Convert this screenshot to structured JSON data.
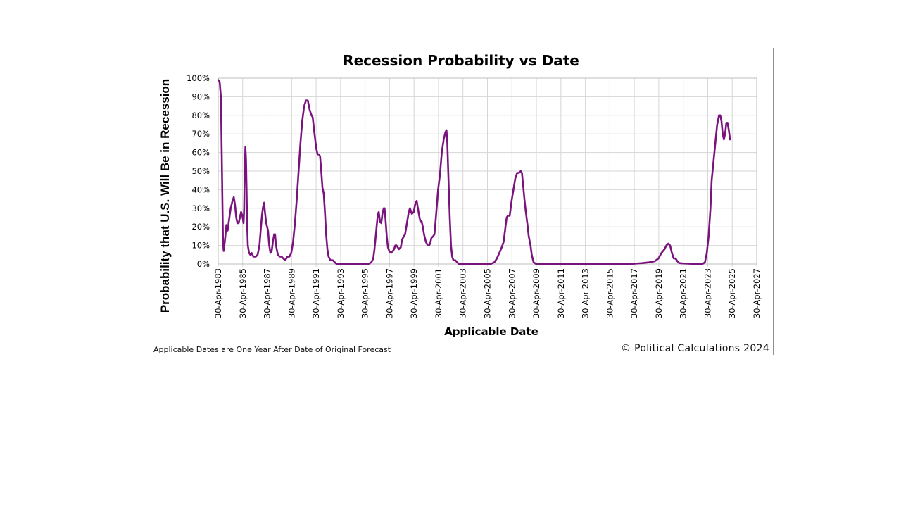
{
  "chart_data": {
    "type": "line",
    "title": "Recession Probability vs Date",
    "ylabel": "Probability that U.S. Will Be in Recession",
    "xlabel": "Applicable Date",
    "footnote": "Applicable Dates are One Year After Date of Original Forecast",
    "copyright": "© Political Calculations 2024",
    "ylim": [
      0,
      100
    ],
    "xlim": [
      1983.33,
      2027.33
    ],
    "yticks": [
      "0%",
      "10%",
      "20%",
      "30%",
      "40%",
      "50%",
      "60%",
      "70%",
      "80%",
      "90%",
      "100%"
    ],
    "xticks": [
      "30-Apr-1983",
      "30-Apr-1985",
      "30-Apr-1987",
      "30-Apr-1989",
      "30-Apr-1991",
      "30-Apr-1993",
      "30-Apr-1995",
      "30-Apr-1997",
      "30-Apr-1999",
      "30-Apr-2001",
      "30-Apr-2003",
      "30-Apr-2005",
      "30-Apr-2007",
      "30-Apr-2009",
      "30-Apr-2011",
      "30-Apr-2013",
      "30-Apr-2015",
      "30-Apr-2017",
      "30-Apr-2019",
      "30-Apr-2021",
      "30-Apr-2023",
      "30-Apr-2025",
      "30-Apr-2027"
    ],
    "grid": true,
    "series_color": "#7a137e",
    "series": [
      {
        "values": [
          [
            1983.33,
            99
          ],
          [
            1983.45,
            98
          ],
          [
            1983.55,
            90
          ],
          [
            1983.62,
            60
          ],
          [
            1983.68,
            30
          ],
          [
            1983.72,
            12
          ],
          [
            1983.78,
            7
          ],
          [
            1983.9,
            14
          ],
          [
            1984.0,
            21
          ],
          [
            1984.1,
            18
          ],
          [
            1984.2,
            23
          ],
          [
            1984.35,
            30
          ],
          [
            1984.5,
            34
          ],
          [
            1984.6,
            36
          ],
          [
            1984.7,
            32
          ],
          [
            1984.8,
            25
          ],
          [
            1984.9,
            22
          ],
          [
            1985.0,
            22
          ],
          [
            1985.1,
            25
          ],
          [
            1985.2,
            28
          ],
          [
            1985.3,
            26
          ],
          [
            1985.4,
            22
          ],
          [
            1985.45,
            30
          ],
          [
            1985.5,
            50
          ],
          [
            1985.55,
            63
          ],
          [
            1985.6,
            56
          ],
          [
            1985.65,
            40
          ],
          [
            1985.7,
            20
          ],
          [
            1985.75,
            10
          ],
          [
            1985.85,
            6
          ],
          [
            1985.95,
            5
          ],
          [
            1986.05,
            6
          ],
          [
            1986.2,
            4
          ],
          [
            1986.4,
            4
          ],
          [
            1986.55,
            5
          ],
          [
            1986.7,
            10
          ],
          [
            1986.8,
            18
          ],
          [
            1986.9,
            26
          ],
          [
            1987.0,
            31
          ],
          [
            1987.08,
            33
          ],
          [
            1987.15,
            28
          ],
          [
            1987.25,
            22
          ],
          [
            1987.4,
            18
          ],
          [
            1987.5,
            10
          ],
          [
            1987.6,
            6
          ],
          [
            1987.7,
            7
          ],
          [
            1987.8,
            12
          ],
          [
            1987.9,
            16
          ],
          [
            1987.98,
            16
          ],
          [
            1988.05,
            10
          ],
          [
            1988.2,
            5
          ],
          [
            1988.35,
            4
          ],
          [
            1988.5,
            4
          ],
          [
            1988.65,
            3
          ],
          [
            1988.8,
            2
          ],
          [
            1988.9,
            3
          ],
          [
            1989.0,
            4
          ],
          [
            1989.15,
            4
          ],
          [
            1989.3,
            6
          ],
          [
            1989.45,
            12
          ],
          [
            1989.6,
            22
          ],
          [
            1989.75,
            35
          ],
          [
            1989.9,
            50
          ],
          [
            1990.05,
            65
          ],
          [
            1990.2,
            77
          ],
          [
            1990.35,
            85
          ],
          [
            1990.5,
            88
          ],
          [
            1990.65,
            88
          ],
          [
            1990.8,
            83
          ],
          [
            1990.95,
            80
          ],
          [
            1991.05,
            79
          ],
          [
            1991.2,
            70
          ],
          [
            1991.35,
            62
          ],
          [
            1991.45,
            59
          ],
          [
            1991.55,
            59
          ],
          [
            1991.65,
            58
          ],
          [
            1991.75,
            50
          ],
          [
            1991.85,
            41
          ],
          [
            1991.95,
            38
          ],
          [
            1992.05,
            28
          ],
          [
            1992.15,
            16
          ],
          [
            1992.25,
            8
          ],
          [
            1992.35,
            4
          ],
          [
            1992.5,
            2
          ],
          [
            1992.7,
            2
          ],
          [
            1992.85,
            1
          ],
          [
            1993.0,
            0
          ],
          [
            1993.5,
            0
          ],
          [
            1994.0,
            0
          ],
          [
            1995.0,
            0
          ],
          [
            1995.6,
            0
          ],
          [
            1995.85,
            1
          ],
          [
            1996.0,
            3
          ],
          [
            1996.1,
            8
          ],
          [
            1996.2,
            15
          ],
          [
            1996.3,
            22
          ],
          [
            1996.38,
            27
          ],
          [
            1996.45,
            28
          ],
          [
            1996.55,
            23
          ],
          [
            1996.65,
            22
          ],
          [
            1996.75,
            27
          ],
          [
            1996.85,
            30
          ],
          [
            1996.92,
            30
          ],
          [
            1997.0,
            24
          ],
          [
            1997.1,
            15
          ],
          [
            1997.2,
            9
          ],
          [
            1997.3,
            7
          ],
          [
            1997.45,
            6
          ],
          [
            1997.6,
            7
          ],
          [
            1997.7,
            8
          ],
          [
            1997.8,
            10
          ],
          [
            1997.9,
            10
          ],
          [
            1998.0,
            9
          ],
          [
            1998.1,
            8
          ],
          [
            1998.25,
            9
          ],
          [
            1998.35,
            13
          ],
          [
            1998.5,
            15
          ],
          [
            1998.6,
            16
          ],
          [
            1998.75,
            22
          ],
          [
            1998.9,
            28
          ],
          [
            1999.0,
            30
          ],
          [
            1999.15,
            27
          ],
          [
            1999.3,
            28
          ],
          [
            1999.45,
            33
          ],
          [
            1999.55,
            34
          ],
          [
            1999.65,
            30
          ],
          [
            1999.75,
            26
          ],
          [
            1999.85,
            23
          ],
          [
            1999.95,
            23
          ],
          [
            2000.05,
            20
          ],
          [
            2000.15,
            16
          ],
          [
            2000.3,
            12
          ],
          [
            2000.45,
            10
          ],
          [
            2000.55,
            10
          ],
          [
            2000.65,
            11
          ],
          [
            2000.75,
            14
          ],
          [
            2000.9,
            15
          ],
          [
            2001.0,
            16
          ],
          [
            2001.1,
            24
          ],
          [
            2001.2,
            32
          ],
          [
            2001.3,
            40
          ],
          [
            2001.45,
            48
          ],
          [
            2001.6,
            60
          ],
          [
            2001.75,
            67
          ],
          [
            2001.9,
            71
          ],
          [
            2001.98,
            72
          ],
          [
            2002.05,
            65
          ],
          [
            2002.15,
            45
          ],
          [
            2002.25,
            25
          ],
          [
            2002.35,
            10
          ],
          [
            2002.45,
            4
          ],
          [
            2002.55,
            2
          ],
          [
            2002.7,
            2
          ],
          [
            2002.85,
            1
          ],
          [
            2003.0,
            0
          ],
          [
            2003.5,
            0
          ],
          [
            2004.0,
            0
          ],
          [
            2005.0,
            0
          ],
          [
            2005.6,
            0
          ],
          [
            2005.9,
            1
          ],
          [
            2006.1,
            3
          ],
          [
            2006.3,
            6
          ],
          [
            2006.5,
            9
          ],
          [
            2006.65,
            12
          ],
          [
            2006.8,
            20
          ],
          [
            2006.9,
            25
          ],
          [
            2007.0,
            26
          ],
          [
            2007.15,
            26
          ],
          [
            2007.3,
            34
          ],
          [
            2007.45,
            40
          ],
          [
            2007.6,
            46
          ],
          [
            2007.75,
            49
          ],
          [
            2007.9,
            49
          ],
          [
            2008.05,
            50
          ],
          [
            2008.15,
            49
          ],
          [
            2008.25,
            42
          ],
          [
            2008.35,
            35
          ],
          [
            2008.45,
            29
          ],
          [
            2008.6,
            21
          ],
          [
            2008.7,
            15
          ],
          [
            2008.85,
            10
          ],
          [
            2008.95,
            5
          ],
          [
            2009.1,
            1
          ],
          [
            2009.3,
            0
          ],
          [
            2010.0,
            0
          ],
          [
            2012.0,
            0
          ],
          [
            2014.0,
            0
          ],
          [
            2016.0,
            0
          ],
          [
            2017.0,
            0
          ],
          [
            2018.0,
            0.5
          ],
          [
            2018.6,
            1
          ],
          [
            2019.0,
            1.5
          ],
          [
            2019.3,
            3
          ],
          [
            2019.55,
            6
          ],
          [
            2019.8,
            8
          ],
          [
            2019.95,
            10
          ],
          [
            2020.1,
            11
          ],
          [
            2020.25,
            10
          ],
          [
            2020.4,
            6
          ],
          [
            2020.55,
            3
          ],
          [
            2020.7,
            3
          ],
          [
            2020.85,
            1.5
          ],
          [
            2021.0,
            0.5
          ],
          [
            2021.3,
            0.3
          ],
          [
            2021.7,
            0.2
          ],
          [
            2022.2,
            0
          ],
          [
            2022.6,
            0
          ],
          [
            2022.9,
            0
          ],
          [
            2023.1,
            1
          ],
          [
            2023.25,
            6
          ],
          [
            2023.4,
            15
          ],
          [
            2023.55,
            30
          ],
          [
            2023.65,
            45
          ],
          [
            2023.8,
            55
          ],
          [
            2023.95,
            65
          ],
          [
            2024.1,
            75
          ],
          [
            2024.25,
            80
          ],
          [
            2024.35,
            80
          ],
          [
            2024.45,
            77
          ],
          [
            2024.55,
            70
          ],
          [
            2024.65,
            67
          ],
          [
            2024.75,
            70
          ],
          [
            2024.85,
            76
          ],
          [
            2024.95,
            76
          ],
          [
            2025.05,
            72
          ],
          [
            2025.15,
            67
          ]
        ]
      }
    ]
  }
}
